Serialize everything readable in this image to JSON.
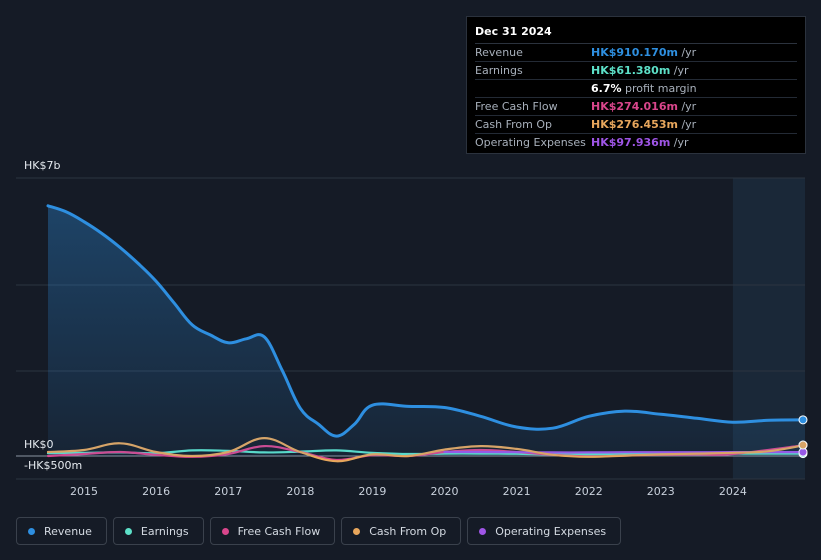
{
  "chart_data": {
    "type": "line",
    "y_axis_labels": {
      "top": "HK$7b",
      "zero": "HK$0",
      "bottom": "-HK$500m"
    },
    "ylim": [
      -500,
      7000
    ],
    "x_ticks": [
      "2015",
      "2016",
      "2017",
      "2018",
      "2019",
      "2020",
      "2021",
      "2022",
      "2023",
      "2024"
    ],
    "x_range": [
      2014.5,
      2025.0
    ],
    "forecast_start": 2024.0,
    "series": [
      {
        "name": "Revenue",
        "color": "#2e8fe0",
        "points": [
          [
            2014.5,
            6300
          ],
          [
            2014.75,
            6150
          ],
          [
            2015.0,
            5900
          ],
          [
            2015.25,
            5600
          ],
          [
            2015.5,
            5250
          ],
          [
            2015.75,
            4850
          ],
          [
            2016.0,
            4400
          ],
          [
            2016.25,
            3850
          ],
          [
            2016.5,
            3300
          ],
          [
            2016.75,
            3050
          ],
          [
            2017.0,
            2850
          ],
          [
            2017.25,
            2950
          ],
          [
            2017.5,
            3000
          ],
          [
            2017.75,
            2150
          ],
          [
            2018.0,
            1200
          ],
          [
            2018.25,
            800
          ],
          [
            2018.5,
            500
          ],
          [
            2018.75,
            800
          ],
          [
            2019.0,
            1280
          ],
          [
            2019.5,
            1250
          ],
          [
            2020.0,
            1220
          ],
          [
            2020.5,
            1000
          ],
          [
            2021.0,
            730
          ],
          [
            2021.5,
            700
          ],
          [
            2022.0,
            1000
          ],
          [
            2022.5,
            1130
          ],
          [
            2023.0,
            1050
          ],
          [
            2023.5,
            950
          ],
          [
            2024.0,
            850
          ],
          [
            2024.5,
            900
          ],
          [
            2025.0,
            910
          ]
        ]
      },
      {
        "name": "Earnings",
        "color": "#5de0c8",
        "points": [
          [
            2014.5,
            70
          ],
          [
            2015.0,
            80
          ],
          [
            2015.5,
            90
          ],
          [
            2016.0,
            70
          ],
          [
            2016.5,
            140
          ],
          [
            2017.0,
            130
          ],
          [
            2017.5,
            90
          ],
          [
            2018.0,
            110
          ],
          [
            2018.5,
            140
          ],
          [
            2019.0,
            80
          ],
          [
            2019.5,
            50
          ],
          [
            2020.0,
            60
          ],
          [
            2020.5,
            60
          ],
          [
            2021.0,
            55
          ],
          [
            2021.5,
            40
          ],
          [
            2022.0,
            40
          ],
          [
            2022.5,
            50
          ],
          [
            2023.0,
            50
          ],
          [
            2023.5,
            55
          ],
          [
            2024.0,
            60
          ],
          [
            2025.0,
            61
          ]
        ]
      },
      {
        "name": "Free Cash Flow",
        "color": "#d9468c",
        "points": [
          [
            2014.5,
            0
          ],
          [
            2015.0,
            50
          ],
          [
            2015.5,
            100
          ],
          [
            2016.0,
            30
          ],
          [
            2016.5,
            -20
          ],
          [
            2017.0,
            50
          ],
          [
            2017.5,
            250
          ],
          [
            2018.0,
            100
          ],
          [
            2018.5,
            -100
          ],
          [
            2019.0,
            20
          ],
          [
            2019.5,
            0
          ],
          [
            2020.0,
            100
          ],
          [
            2020.5,
            150
          ],
          [
            2021.0,
            100
          ],
          [
            2021.5,
            30
          ],
          [
            2022.0,
            -10
          ],
          [
            2022.5,
            10
          ],
          [
            2023.0,
            30
          ],
          [
            2023.5,
            40
          ],
          [
            2024.0,
            50
          ],
          [
            2025.0,
            274
          ]
        ]
      },
      {
        "name": "Cash From Op",
        "color": "#e7a65c",
        "points": [
          [
            2014.5,
            100
          ],
          [
            2015.0,
            150
          ],
          [
            2015.5,
            320
          ],
          [
            2016.0,
            100
          ],
          [
            2016.5,
            0
          ],
          [
            2017.0,
            100
          ],
          [
            2017.5,
            450
          ],
          [
            2018.0,
            100
          ],
          [
            2018.5,
            -130
          ],
          [
            2019.0,
            40
          ],
          [
            2019.5,
            0
          ],
          [
            2020.0,
            160
          ],
          [
            2020.5,
            250
          ],
          [
            2021.0,
            180
          ],
          [
            2021.5,
            30
          ],
          [
            2022.0,
            -20
          ],
          [
            2022.5,
            10
          ],
          [
            2023.0,
            40
          ],
          [
            2023.5,
            60
          ],
          [
            2024.0,
            80
          ],
          [
            2024.5,
            120
          ],
          [
            2025.0,
            276
          ]
        ]
      },
      {
        "name": "Operating Expenses",
        "color": "#9f55e6",
        "points": [
          [
            2020.0,
            100
          ],
          [
            2020.5,
            100
          ],
          [
            2021.0,
            95
          ],
          [
            2021.5,
            90
          ],
          [
            2022.0,
            90
          ],
          [
            2022.5,
            95
          ],
          [
            2023.0,
            95
          ],
          [
            2023.5,
            96
          ],
          [
            2024.0,
            97
          ],
          [
            2025.0,
            98
          ]
        ]
      }
    ]
  },
  "tooltip": {
    "date": "Dec 31 2024",
    "unit": "/yr",
    "rows": [
      {
        "label": "Revenue",
        "value": "HK$910.170m",
        "color": "#2e8fe0"
      },
      {
        "label": "Earnings",
        "value": "HK$61.380m",
        "color": "#5de0c8"
      },
      {
        "label": "",
        "value": "6.7%",
        "suffix": "profit margin",
        "color": "#ffffff"
      },
      {
        "label": "Free Cash Flow",
        "value": "HK$274.016m",
        "color": "#d9468c"
      },
      {
        "label": "Cash From Op",
        "value": "HK$276.453m",
        "color": "#e7a65c"
      },
      {
        "label": "Operating Expenses",
        "value": "HK$97.936m",
        "color": "#9f55e6"
      }
    ]
  },
  "legend": [
    {
      "label": "Revenue",
      "color": "#2e8fe0"
    },
    {
      "label": "Earnings",
      "color": "#5de0c8"
    },
    {
      "label": "Free Cash Flow",
      "color": "#d9468c"
    },
    {
      "label": "Cash From Op",
      "color": "#e7a65c"
    },
    {
      "label": "Operating Expenses",
      "color": "#9f55e6"
    }
  ]
}
